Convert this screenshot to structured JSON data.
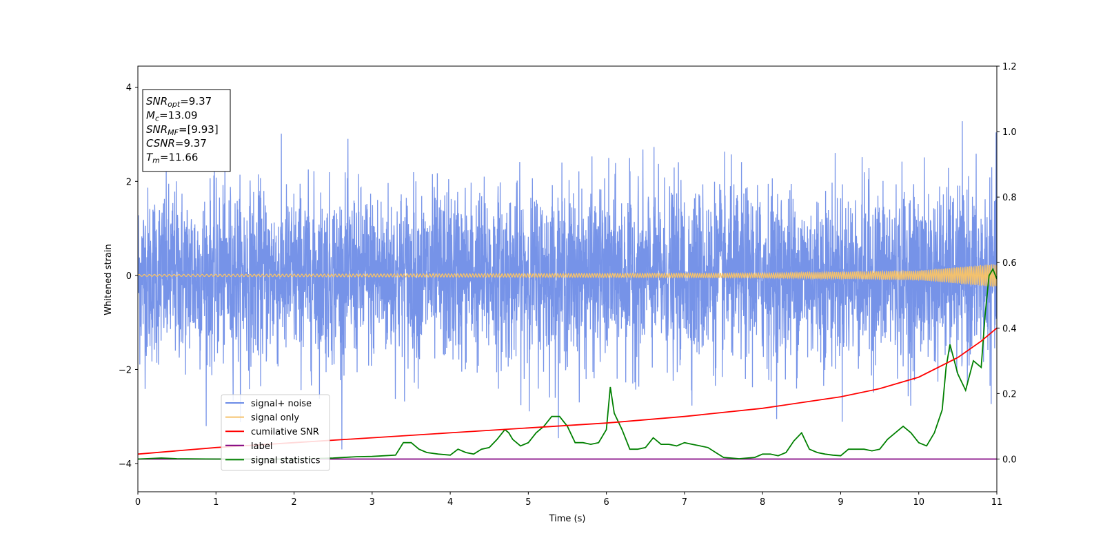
{
  "chart_data": {
    "type": "line",
    "xlabel": "Time (s)",
    "ylabel": "Whitened strain",
    "xlim": [
      0,
      11
    ],
    "ylim_left": [
      -4.6,
      4.45
    ],
    "ylim_right": [
      -0.1,
      1.2
    ],
    "x_ticks": [
      0,
      1,
      2,
      3,
      4,
      5,
      6,
      7,
      8,
      9,
      10,
      11
    ],
    "y_ticks_left": [
      -4,
      -2,
      0,
      2,
      4
    ],
    "y_ticks_right": [
      "0.0",
      "0.2",
      "0.4",
      "0.6",
      "0.8",
      "1.0",
      "1.2"
    ],
    "grid": false,
    "legend_position": "lower-left",
    "annotation": {
      "lines": [
        {
          "sym": "SNR",
          "sub": "opt",
          "value": "=9.37"
        },
        {
          "sym": "M",
          "sub": "c",
          "value": "=13.09"
        },
        {
          "sym": "SNR",
          "sub": "MF",
          "value": "=[9.93]"
        },
        {
          "sym": "CSNR",
          "sub": "",
          "value": "=9.37"
        },
        {
          "sym": "T",
          "sub": "m",
          "value": "=11.66"
        }
      ]
    },
    "series": [
      {
        "name": "signal+ noise",
        "axis": "left",
        "color": "#6a8ae6",
        "description_values": {
          "typical_range": [
            -2.5,
            2.5
          ],
          "max": 3.98,
          "min": -4.2
        }
      },
      {
        "name": "signal only",
        "axis": "left",
        "color": "#f5c26b",
        "amplitude": {
          "x": [
            0,
            8,
            10,
            11
          ],
          "y": [
            0.02,
            0.05,
            0.1,
            0.25
          ]
        }
      },
      {
        "name": "cumilative SNR",
        "axis": "right",
        "color": "#ff0000",
        "x": [
          0,
          1,
          2,
          3,
          4,
          5,
          6,
          7,
          8,
          9,
          9.5,
          10,
          10.5,
          10.8,
          11
        ],
        "y": [
          0.015,
          0.035,
          0.05,
          0.065,
          0.08,
          0.095,
          0.11,
          0.13,
          0.155,
          0.19,
          0.215,
          0.25,
          0.31,
          0.36,
          0.4
        ]
      },
      {
        "name": "label",
        "axis": "right",
        "color": "#800080",
        "x": [
          0,
          11
        ],
        "y": [
          0.0,
          0.0
        ]
      },
      {
        "name": "signal statistics",
        "axis": "right",
        "color": "#008000",
        "x": [
          0,
          0.3,
          0.5,
          1.0,
          1.5,
          2.0,
          2.5,
          2.8,
          3.0,
          3.3,
          3.4,
          3.5,
          3.6,
          3.7,
          3.85,
          4.0,
          4.1,
          4.2,
          4.3,
          4.4,
          4.5,
          4.6,
          4.7,
          4.75,
          4.8,
          4.9,
          5.0,
          5.1,
          5.2,
          5.3,
          5.4,
          5.5,
          5.6,
          5.7,
          5.8,
          5.9,
          6.0,
          6.05,
          6.1,
          6.2,
          6.3,
          6.4,
          6.5,
          6.6,
          6.7,
          6.8,
          6.9,
          7.0,
          7.1,
          7.2,
          7.3,
          7.4,
          7.5,
          7.7,
          7.9,
          8.0,
          8.1,
          8.2,
          8.3,
          8.4,
          8.5,
          8.6,
          8.7,
          8.8,
          8.9,
          9.0,
          9.1,
          9.2,
          9.3,
          9.4,
          9.5,
          9.6,
          9.7,
          9.75,
          9.8,
          9.9,
          10.0,
          10.1,
          10.2,
          10.3,
          10.35,
          10.4,
          10.5,
          10.6,
          10.7,
          10.8,
          10.85,
          10.9,
          10.95,
          11.0
        ],
        "y": [
          0.0,
          0.003,
          0.001,
          0.0,
          0.0,
          0.0,
          0.003,
          0.007,
          0.008,
          0.012,
          0.05,
          0.05,
          0.03,
          0.02,
          0.015,
          0.012,
          0.03,
          0.02,
          0.015,
          0.03,
          0.035,
          0.06,
          0.09,
          0.08,
          0.06,
          0.04,
          0.05,
          0.08,
          0.1,
          0.13,
          0.13,
          0.1,
          0.05,
          0.05,
          0.045,
          0.05,
          0.09,
          0.22,
          0.14,
          0.09,
          0.03,
          0.03,
          0.035,
          0.065,
          0.045,
          0.045,
          0.04,
          0.05,
          0.045,
          0.04,
          0.035,
          0.02,
          0.005,
          0.001,
          0.005,
          0.015,
          0.015,
          0.01,
          0.02,
          0.055,
          0.08,
          0.03,
          0.02,
          0.015,
          0.012,
          0.01,
          0.03,
          0.03,
          0.03,
          0.025,
          0.03,
          0.06,
          0.08,
          0.09,
          0.1,
          0.08,
          0.05,
          0.04,
          0.08,
          0.15,
          0.28,
          0.35,
          0.26,
          0.21,
          0.3,
          0.28,
          0.44,
          0.56,
          0.58,
          0.55
        ]
      }
    ]
  }
}
